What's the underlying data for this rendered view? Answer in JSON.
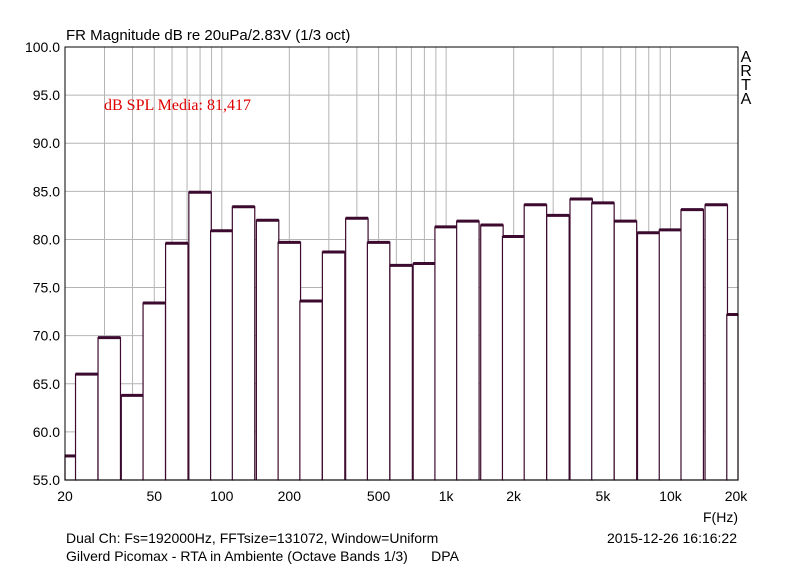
{
  "chart_data": {
    "type": "bar",
    "title": "FR Magnitude dB re 20uPa/2.83V (1/3 oct)",
    "xlabel": "F(Hz)",
    "ylabel": "",
    "x_scale": "log",
    "xlim": [
      20,
      20000
    ],
    "ylim": [
      55,
      100
    ],
    "grid": true,
    "y_ticks": [
      "100.0",
      "95.0",
      "90.0",
      "85.0",
      "80.0",
      "75.0",
      "70.0",
      "65.0",
      "60.0",
      "55.0"
    ],
    "x_ticks": [
      {
        "f": 20,
        "label": "20"
      },
      {
        "f": 50,
        "label": "50"
      },
      {
        "f": 100,
        "label": "100"
      },
      {
        "f": 200,
        "label": "200"
      },
      {
        "f": 500,
        "label": "500"
      },
      {
        "f": 1000,
        "label": "1k"
      },
      {
        "f": 2000,
        "label": "2k"
      },
      {
        "f": 5000,
        "label": "5k"
      },
      {
        "f": 10000,
        "label": "10k"
      },
      {
        "f": 20000,
        "label": "20k"
      }
    ],
    "categories": [
      20,
      25,
      31.5,
      40,
      50,
      63,
      80,
      100,
      125,
      160,
      200,
      250,
      315,
      400,
      500,
      630,
      800,
      1000,
      1250,
      1600,
      2000,
      2500,
      3150,
      4000,
      5000,
      6300,
      8000,
      10000,
      12500,
      16000,
      20000
    ],
    "values": [
      57.5,
      66.0,
      69.8,
      63.8,
      73.4,
      79.6,
      84.9,
      80.9,
      83.4,
      82.0,
      79.7,
      73.6,
      78.7,
      82.2,
      79.7,
      77.3,
      77.5,
      81.3,
      81.9,
      81.5,
      80.3,
      83.6,
      82.5,
      84.2,
      83.8,
      81.9,
      80.7,
      81.0,
      83.1,
      83.6,
      72.2
    ],
    "annotation": "dB SPL Media: 81,417",
    "annotation_color": "#e00000",
    "bar_color": "#3c0a2e",
    "grid_color": "#b4b4b4",
    "axis_color": "#000000",
    "side_label": [
      "A",
      "R",
      "T",
      "A"
    ]
  },
  "footer": {
    "line1": "Dual Ch: Fs=192000Hz, FFTsize=131072, Window=Uniform",
    "line2": "Gilverd Picomax - RTA in Ambiente (Octave Bands 1/3)      DPA",
    "datetime": "2015-12-26  16:16:22"
  }
}
